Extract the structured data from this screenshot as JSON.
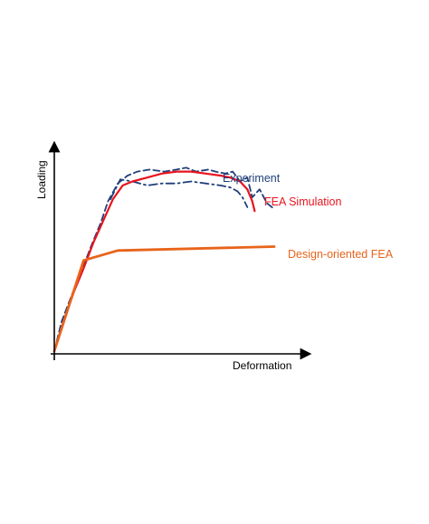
{
  "chart_data": {
    "type": "line",
    "title": "",
    "xlabel": "Deformation",
    "ylabel": "Loading",
    "xlim": [
      0,
      10
    ],
    "ylim": [
      0,
      10
    ],
    "grid": false,
    "legend": "inline labels beside curves",
    "axis_color": "#000000",
    "series": [
      {
        "name": "Experiment",
        "style": "dashed",
        "color": "#1f3f7a",
        "x": [
          0,
          0.3,
          0.7,
          1.1,
          1.5,
          1.9,
          2.2,
          2.6,
          3.0,
          3.4,
          3.9,
          4.5,
          5.0,
          5.4,
          5.8,
          6.3,
          6.6,
          7.0,
          7.3,
          7.6,
          7.9,
          8.1,
          8.4,
          8.7,
          9.0
        ],
        "y": [
          0,
          1.5,
          2.8,
          4.0,
          5.3,
          6.5,
          7.6,
          8.5,
          8.9,
          9.1,
          9.2,
          9.1,
          9.2,
          9.3,
          9.1,
          9.2,
          9.1,
          9.0,
          9.1,
          8.6,
          8.8,
          7.8,
          8.2,
          7.5,
          7.2
        ]
      },
      {
        "name": "",
        "style": "dashdot",
        "color": "#1f3f7a",
        "x": [
          2.3,
          2.7,
          3.2,
          3.8,
          4.4,
          5.0,
          5.6,
          6.2,
          6.8,
          7.2,
          7.5,
          7.7,
          7.9
        ],
        "y": [
          7.7,
          8.7,
          8.6,
          8.4,
          8.5,
          8.5,
          8.6,
          8.5,
          8.4,
          8.3,
          8.1,
          7.8,
          7.3
        ]
      },
      {
        "name": "FEA Simulation",
        "style": "solid",
        "color": "#e8141e",
        "x": [
          0,
          0.4,
          0.8,
          1.2,
          1.6,
          2.0,
          2.4,
          2.8,
          3.2,
          3.8,
          4.4,
          5.0,
          5.6,
          6.2,
          6.8,
          7.2,
          7.6,
          7.9,
          8.1,
          8.2
        ],
        "y": [
          0,
          1.6,
          3.0,
          4.2,
          5.5,
          6.6,
          7.7,
          8.4,
          8.6,
          8.8,
          9.0,
          9.1,
          9.1,
          9.0,
          8.9,
          8.8,
          8.6,
          8.2,
          7.6,
          7.1
        ]
      },
      {
        "name": "Design-oriented FEA",
        "style": "solid",
        "color": "#e8641a",
        "x": [
          0,
          1.2,
          2.6,
          9.0
        ],
        "y": [
          0,
          4.6,
          5.1,
          5.3
        ]
      }
    ]
  }
}
